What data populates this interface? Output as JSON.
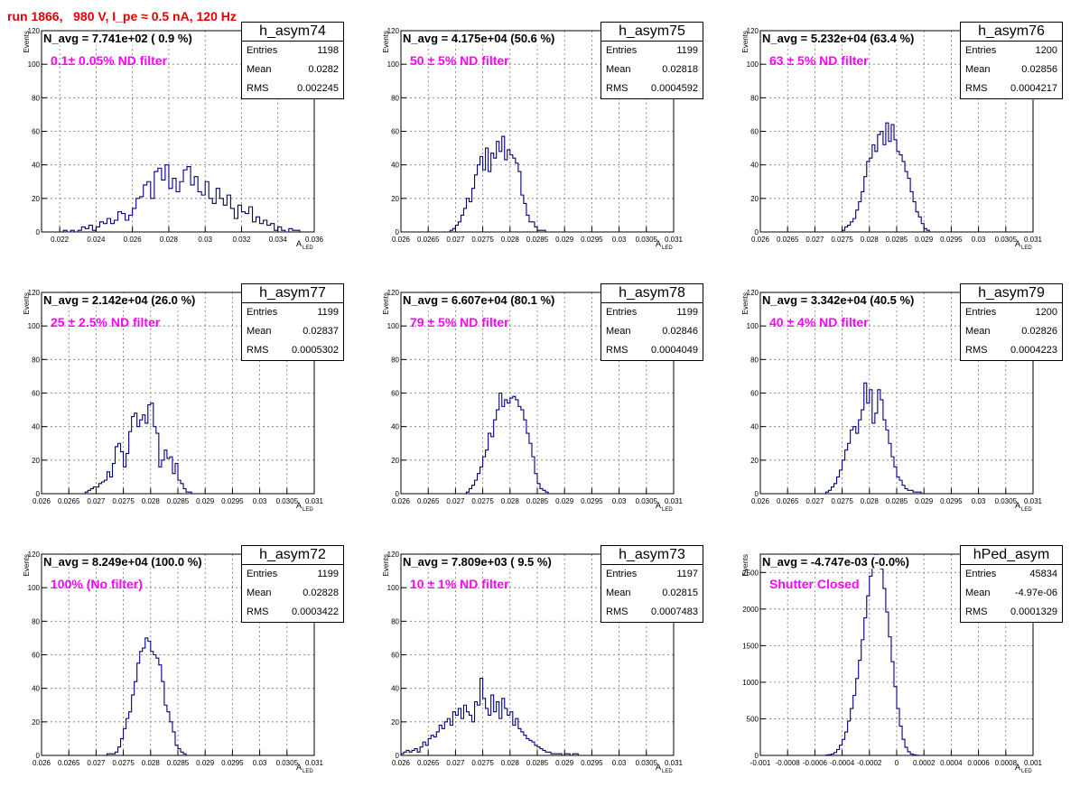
{
  "page": {
    "title": "run 1866,   980 V, I_pe ≈ 0.5 nA, 120 Hz"
  },
  "stat_labels": {
    "entries": "Entries",
    "mean": "Mean",
    "rms": "RMS"
  },
  "colors": {
    "line": "#00007f",
    "title": "#e00000",
    "note": "#ff00ff",
    "grid": "#777777"
  },
  "chart_data": [
    {
      "type": "histogram",
      "name": "h_asym74",
      "navg": "N_avg = 7.741e+02 ( 0.9 %)",
      "note": "0.1± 0.05% ND filter",
      "stats": {
        "entries": "1198",
        "mean": "0.0282",
        "rms": "0.002245"
      },
      "xlabel": "A",
      "xlabel_sub": "LED",
      "ylabel": "Events",
      "xlim": [
        0.021,
        0.036
      ],
      "ylim": [
        0,
        120
      ],
      "grid": true,
      "xticks": [
        0.022,
        0.024,
        0.026,
        0.028,
        0.03,
        0.032,
        0.034,
        0.036
      ],
      "xtick_labels": [
        "0.022",
        "0.024",
        "0.026",
        "0.028",
        "0.03",
        "0.032",
        "0.034",
        "0.036"
      ],
      "yticks": [
        0,
        20,
        40,
        60,
        80,
        100,
        120
      ],
      "ytick_labels": [
        "0",
        "20",
        "40",
        "60",
        "80",
        "100",
        "120"
      ],
      "bin_start": 0.0222,
      "bin_width": 0.0002,
      "counts": [
        1,
        0,
        1,
        0,
        1,
        3,
        2,
        4,
        1,
        3,
        6,
        5,
        8,
        5,
        7,
        12,
        11,
        7,
        10,
        14,
        20,
        21,
        28,
        30,
        20,
        36,
        38,
        31,
        40,
        26,
        32,
        24,
        30,
        37,
        39,
        28,
        33,
        24,
        22,
        30,
        20,
        17,
        26,
        20,
        16,
        22,
        14,
        8,
        16,
        12,
        11,
        15,
        6,
        9,
        5,
        7,
        4,
        5,
        1,
        3,
        1,
        0,
        2,
        1,
        1
      ]
    },
    {
      "type": "histogram",
      "name": "h_asym75",
      "navg": "N_avg = 4.175e+04 (50.6 %)",
      "note": "50 ± 5% ND filter",
      "stats": {
        "entries": "1199",
        "mean": "0.02818",
        "rms": "0.0004592"
      },
      "xlabel": "A",
      "xlabel_sub": "LED",
      "ylabel": "Events",
      "xlim": [
        0.026,
        0.031
      ],
      "ylim": [
        0,
        120
      ],
      "grid": true,
      "xticks": [
        0.026,
        0.0265,
        0.027,
        0.0275,
        0.028,
        0.0285,
        0.029,
        0.0295,
        0.03,
        0.0305,
        0.031
      ],
      "xtick_labels": [
        "0.026",
        "0.0265",
        "0.027",
        "0.0275",
        "0.028",
        "0.0285",
        "0.029",
        "0.0295",
        "0.03",
        "0.0305",
        "0.031"
      ],
      "yticks": [
        0,
        20,
        40,
        60,
        80,
        100,
        120
      ],
      "ytick_labels": [
        "0",
        "20",
        "40",
        "60",
        "80",
        "100",
        "120"
      ],
      "bin_start": 0.0269,
      "bin_width": 5e-05,
      "counts": [
        1,
        2,
        4,
        6,
        10,
        14,
        20,
        18,
        26,
        34,
        40,
        45,
        37,
        50,
        36,
        47,
        44,
        54,
        48,
        57,
        43,
        49,
        46,
        44,
        41,
        36,
        22,
        17,
        10,
        6,
        6,
        3,
        1,
        1,
        1
      ]
    },
    {
      "type": "histogram",
      "name": "h_asym76",
      "navg": "N_avg = 5.232e+04 (63.4 %)",
      "note": "63 ± 5% ND filter",
      "stats": {
        "entries": "1200",
        "mean": "0.02856",
        "rms": "0.0004217"
      },
      "xlabel": "A",
      "xlabel_sub": "LED",
      "ylabel": "Events",
      "xlim": [
        0.026,
        0.031
      ],
      "ylim": [
        0,
        120
      ],
      "grid": true,
      "xticks": [
        0.026,
        0.0265,
        0.027,
        0.0275,
        0.028,
        0.0285,
        0.029,
        0.0295,
        0.03,
        0.0305,
        0.031
      ],
      "xtick_labels": [
        "0.026",
        "0.0265",
        "0.027",
        "0.0275",
        "0.028",
        "0.0285",
        "0.029",
        "0.0295",
        "0.03",
        "0.0305",
        "0.031"
      ],
      "yticks": [
        0,
        20,
        40,
        60,
        80,
        100,
        120
      ],
      "ytick_labels": [
        "0",
        "20",
        "40",
        "60",
        "80",
        "100",
        "120"
      ],
      "bin_start": 0.0275,
      "bin_width": 5e-05,
      "counts": [
        1,
        3,
        4,
        6,
        8,
        13,
        18,
        24,
        33,
        42,
        44,
        52,
        48,
        58,
        60,
        52,
        65,
        54,
        64,
        55,
        48,
        46,
        42,
        36,
        32,
        24,
        18,
        12,
        9,
        5,
        2,
        1
      ]
    },
    {
      "type": "histogram",
      "name": "h_asym77",
      "navg": "N_avg = 2.142e+04 (26.0 %)",
      "note": "25 ± 2.5% ND filter",
      "stats": {
        "entries": "1199",
        "mean": "0.02837",
        "rms": "0.0005302"
      },
      "xlabel": "A",
      "xlabel_sub": "LED",
      "ylabel": "Events",
      "xlim": [
        0.026,
        0.031
      ],
      "ylim": [
        0,
        120
      ],
      "grid": true,
      "xticks": [
        0.026,
        0.0265,
        0.027,
        0.0275,
        0.028,
        0.0285,
        0.029,
        0.0295,
        0.03,
        0.0305,
        0.031
      ],
      "xtick_labels": [
        "0.026",
        "0.0265",
        "0.027",
        "0.0275",
        "0.028",
        "0.0285",
        "0.029",
        "0.0295",
        "0.03",
        "0.0305",
        "0.031"
      ],
      "yticks": [
        0,
        20,
        40,
        60,
        80,
        100,
        120
      ],
      "ytick_labels": [
        "0",
        "20",
        "40",
        "60",
        "80",
        "100",
        "120"
      ],
      "bin_start": 0.0268,
      "bin_width": 5e-05,
      "counts": [
        1,
        2,
        3,
        4,
        4,
        6,
        7,
        8,
        13,
        10,
        18,
        28,
        30,
        25,
        16,
        24,
        37,
        46,
        48,
        40,
        44,
        47,
        42,
        53,
        54,
        40,
        36,
        16,
        20,
        26,
        21,
        22,
        12,
        18,
        8,
        6,
        3,
        1,
        1
      ]
    },
    {
      "type": "histogram",
      "name": "h_asym78",
      "navg": "N_avg = 6.607e+04 (80.1 %)",
      "note": "79 ± 5% ND filter",
      "stats": {
        "entries": "1199",
        "mean": "0.02846",
        "rms": "0.0004049"
      },
      "xlabel": "A",
      "xlabel_sub": "LED",
      "ylabel": "Events",
      "xlim": [
        0.026,
        0.031
      ],
      "ylim": [
        0,
        120
      ],
      "grid": true,
      "xticks": [
        0.026,
        0.0265,
        0.027,
        0.0275,
        0.028,
        0.0285,
        0.029,
        0.0295,
        0.03,
        0.0305,
        0.031
      ],
      "xtick_labels": [
        "0.026",
        "0.0265",
        "0.027",
        "0.0275",
        "0.028",
        "0.0285",
        "0.029",
        "0.0295",
        "0.03",
        "0.0305",
        "0.031"
      ],
      "yticks": [
        0,
        20,
        40,
        60,
        80,
        100,
        120
      ],
      "ytick_labels": [
        "0",
        "20",
        "40",
        "60",
        "80",
        "100",
        "120"
      ],
      "bin_start": 0.0272,
      "bin_width": 5e-05,
      "counts": [
        1,
        3,
        5,
        8,
        12,
        16,
        22,
        26,
        36,
        34,
        44,
        50,
        60,
        52,
        56,
        54,
        57,
        58,
        56,
        52,
        50,
        44,
        36,
        30,
        22,
        12,
        6,
        3,
        2,
        1
      ]
    },
    {
      "type": "histogram",
      "name": "h_asym79",
      "navg": "N_avg = 3.342e+04 (40.5 %)",
      "note": "40 ± 4% ND filter",
      "stats": {
        "entries": "1200",
        "mean": "0.02826",
        "rms": "0.0004223"
      },
      "xlabel": "A",
      "xlabel_sub": "LED",
      "ylabel": "Events",
      "xlim": [
        0.026,
        0.031
      ],
      "ylim": [
        0,
        120
      ],
      "grid": true,
      "xticks": [
        0.026,
        0.0265,
        0.027,
        0.0275,
        0.028,
        0.0285,
        0.029,
        0.0295,
        0.03,
        0.0305,
        0.031
      ],
      "xtick_labels": [
        "0.026",
        "0.0265",
        "0.027",
        "0.0275",
        "0.028",
        "0.0285",
        "0.029",
        "0.0295",
        "0.03",
        "0.0305",
        "0.031"
      ],
      "yticks": [
        0,
        20,
        40,
        60,
        80,
        100,
        120
      ],
      "ytick_labels": [
        "0",
        "20",
        "40",
        "60",
        "80",
        "100",
        "120"
      ],
      "bin_start": 0.0272,
      "bin_width": 5e-05,
      "counts": [
        1,
        2,
        4,
        6,
        10,
        14,
        20,
        26,
        30,
        38,
        40,
        36,
        44,
        50,
        66,
        54,
        62,
        42,
        48,
        62,
        56,
        44,
        38,
        30,
        22,
        16,
        10,
        8,
        5,
        3,
        2,
        2,
        1,
        1,
        1
      ]
    },
    {
      "type": "histogram",
      "name": "h_asym72",
      "navg": "N_avg = 8.249e+04 (100.0 %)",
      "note": "100% (No filter)",
      "stats": {
        "entries": "1199",
        "mean": "0.02828",
        "rms": "0.0003422"
      },
      "xlabel": "A",
      "xlabel_sub": "LED",
      "ylabel": "Events",
      "xlim": [
        0.026,
        0.031
      ],
      "ylim": [
        0,
        120
      ],
      "grid": true,
      "xticks": [
        0.026,
        0.0265,
        0.027,
        0.0275,
        0.028,
        0.0285,
        0.029,
        0.0295,
        0.03,
        0.0305,
        0.031
      ],
      "xtick_labels": [
        "0.026",
        "0.0265",
        "0.027",
        "0.0275",
        "0.028",
        "0.0285",
        "0.029",
        "0.0295",
        "0.03",
        "0.0305",
        "0.031"
      ],
      "yticks": [
        0,
        20,
        40,
        60,
        80,
        100,
        120
      ],
      "ytick_labels": [
        "0",
        "20",
        "40",
        "60",
        "80",
        "100",
        "120"
      ],
      "bin_start": 0.0272,
      "bin_width": 5e-05,
      "counts": [
        1,
        1,
        1,
        2,
        5,
        10,
        16,
        22,
        26,
        36,
        44,
        55,
        62,
        64,
        70,
        68,
        62,
        60,
        58,
        54,
        44,
        30,
        26,
        20,
        14,
        6,
        4,
        2,
        1
      ]
    },
    {
      "type": "histogram",
      "name": "h_asym73",
      "navg": "N_avg = 7.809e+03 ( 9.5 %)",
      "note": "10 ± 1% ND filter",
      "stats": {
        "entries": "1197",
        "mean": "0.02815",
        "rms": "0.0007483"
      },
      "xlabel": "A",
      "xlabel_sub": "LED",
      "ylabel": "Events",
      "xlim": [
        0.026,
        0.031
      ],
      "ylim": [
        0,
        120
      ],
      "grid": true,
      "xticks": [
        0.026,
        0.0265,
        0.027,
        0.0275,
        0.028,
        0.0285,
        0.029,
        0.0295,
        0.03,
        0.0305,
        0.031
      ],
      "xtick_labels": [
        "0.026",
        "0.0265",
        "0.027",
        "0.0275",
        "0.028",
        "0.0285",
        "0.029",
        "0.0295",
        "0.03",
        "0.0305",
        "0.031"
      ],
      "yticks": [
        0,
        20,
        40,
        60,
        80,
        100,
        120
      ],
      "ytick_labels": [
        "0",
        "20",
        "40",
        "60",
        "80",
        "100",
        "120"
      ],
      "bin_start": 0.026,
      "bin_width": 5e-05,
      "counts": [
        1,
        2,
        3,
        2,
        3,
        4,
        2,
        5,
        8,
        6,
        10,
        12,
        11,
        14,
        18,
        16,
        20,
        22,
        18,
        26,
        24,
        28,
        22,
        30,
        26,
        24,
        20,
        32,
        30,
        46,
        34,
        28,
        24,
        36,
        26,
        32,
        22,
        34,
        28,
        24,
        26,
        18,
        22,
        16,
        14,
        12,
        10,
        9,
        8,
        6,
        5,
        4,
        3,
        2,
        2,
        1,
        1,
        1,
        1,
        0,
        1,
        1,
        0,
        1,
        1
      ]
    },
    {
      "type": "histogram",
      "name": "hPed_asym",
      "navg": "N_avg = -4.747e-03 (-0.0%)",
      "note": "Shutter Closed",
      "stats": {
        "entries": "45834",
        "mean": "-4.97e-06",
        "rms": "0.0001329"
      },
      "xlabel": "A",
      "xlabel_sub": "LED",
      "ylabel": "Events",
      "xlim": [
        -0.001,
        0.001
      ],
      "ylim": [
        0,
        2750
      ],
      "grid": true,
      "xticks": [
        -0.001,
        -0.0008,
        -0.0006,
        -0.0004,
        -0.0002,
        0,
        0.0002,
        0.0004,
        0.0006,
        0.0008,
        0.001
      ],
      "xtick_labels": [
        "-0.001",
        "-0.0008",
        "-0.0006",
        "-0.0004",
        "-0.0002",
        "0",
        "0.0002",
        "0.0004",
        "0.0006",
        "0.0008",
        "0.001"
      ],
      "yticks": [
        0,
        500,
        1000,
        1500,
        2000,
        2500
      ],
      "ytick_labels": [
        "0",
        "500",
        "1000",
        "1500",
        "2000",
        "2500"
      ],
      "bin_start": -0.00052,
      "bin_width": 2e-05,
      "counts": [
        5,
        10,
        20,
        40,
        80,
        140,
        220,
        320,
        470,
        640,
        820,
        1050,
        1300,
        1580,
        1880,
        2180,
        2450,
        2620,
        2750,
        2720,
        2550,
        2280,
        1960,
        1620,
        1280,
        940,
        640,
        400,
        220,
        110,
        50,
        20,
        8,
        3
      ]
    }
  ]
}
